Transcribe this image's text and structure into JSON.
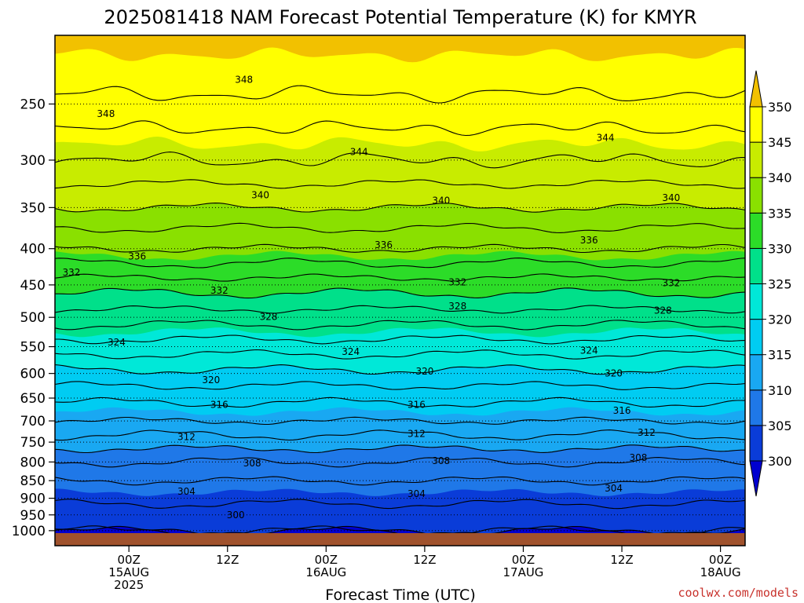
{
  "chart_data": {
    "type": "heatmap",
    "title": "2025081418 NAM Forecast Potential Temperature (K) for KMYR",
    "xlabel": "Forecast Time (UTC)",
    "ylabel": "",
    "credit": "coolwx.com/models",
    "y_scale": "log",
    "y_inverted": true,
    "ylim": [
      200,
      1050
    ],
    "y_ticks": [
      250,
      300,
      350,
      400,
      450,
      500,
      550,
      600,
      650,
      700,
      750,
      800,
      850,
      900,
      950,
      1000
    ],
    "y_tick_labels": [
      "250",
      "300",
      "350",
      "400",
      "450",
      "500",
      "550",
      "600",
      "650",
      "700",
      "750",
      "800",
      "850",
      "900",
      "950",
      "1000"
    ],
    "xlim": [
      -3,
      81
    ],
    "x_ticks": [
      {
        "x": 6,
        "lines": [
          "00Z",
          "15AUG",
          "2025"
        ]
      },
      {
        "x": 18,
        "lines": [
          "12Z"
        ]
      },
      {
        "x": 30,
        "lines": [
          "00Z",
          "16AUG"
        ]
      },
      {
        "x": 42,
        "lines": [
          "12Z"
        ]
      },
      {
        "x": 54,
        "lines": [
          "00Z",
          "17AUG"
        ]
      },
      {
        "x": 66,
        "lines": [
          "12Z"
        ]
      },
      {
        "x": 78,
        "lines": [
          "00Z",
          "18AUG"
        ]
      }
    ],
    "grid": true,
    "surface_color": "#a0522d",
    "colorbar": {
      "levels": [
        300,
        305,
        310,
        315,
        320,
        325,
        330,
        335,
        340,
        345,
        350
      ],
      "labels": [
        "300",
        "305",
        "310",
        "315",
        "320",
        "325",
        "330",
        "335",
        "340",
        "345",
        "350"
      ],
      "colors": [
        "#0000d0",
        "#0a3cd8",
        "#1f78e8",
        "#19a8f2",
        "#00ccf2",
        "#00e8d8",
        "#00e08a",
        "#2cdc28",
        "#8ae000",
        "#c8ec00",
        "#ffff00",
        "#f2c100"
      ],
      "extend": "both"
    },
    "profiles": [
      {
        "p": 1000,
        "theta": 302
      },
      {
        "p": 950,
        "theta": 303
      },
      {
        "p": 900,
        "theta": 304.5
      },
      {
        "p": 850,
        "theta": 306
      },
      {
        "p": 800,
        "theta": 308
      },
      {
        "p": 750,
        "theta": 311
      },
      {
        "p": 700,
        "theta": 314
      },
      {
        "p": 650,
        "theta": 316.5
      },
      {
        "p": 600,
        "theta": 319.5
      },
      {
        "p": 550,
        "theta": 323
      },
      {
        "p": 500,
        "theta": 327
      },
      {
        "p": 450,
        "theta": 331
      },
      {
        "p": 400,
        "theta": 336
      },
      {
        "p": 350,
        "theta": 340
      },
      {
        "p": 300,
        "theta": 344
      },
      {
        "p": 250,
        "theta": 347.5
      },
      {
        "p": 200,
        "theta": 351
      }
    ],
    "contour_levels": [
      300,
      302,
      304,
      306,
      308,
      310,
      312,
      314,
      316,
      318,
      320,
      322,
      324,
      326,
      328,
      330,
      332,
      334,
      336,
      338,
      340,
      342,
      344,
      346,
      348
    ],
    "contour_labels": [
      {
        "value": "348",
        "x": 20,
        "p": 231
      },
      {
        "value": "348",
        "x": 3.2,
        "p": 258
      },
      {
        "value": "344",
        "x": 34,
        "p": 292
      },
      {
        "value": "344",
        "x": 64,
        "p": 279
      },
      {
        "value": "340",
        "x": 22,
        "p": 336
      },
      {
        "value": "340",
        "x": 44,
        "p": 342
      },
      {
        "value": "340",
        "x": 72,
        "p": 339
      },
      {
        "value": "336",
        "x": 7,
        "p": 410
      },
      {
        "value": "336",
        "x": 37,
        "p": 395
      },
      {
        "value": "336",
        "x": 62,
        "p": 389
      },
      {
        "value": "332",
        "x": -1,
        "p": 432
      },
      {
        "value": "332",
        "x": 17,
        "p": 458
      },
      {
        "value": "332",
        "x": 46,
        "p": 446
      },
      {
        "value": "332",
        "x": 72,
        "p": 447
      },
      {
        "value": "328",
        "x": 23,
        "p": 499
      },
      {
        "value": "328",
        "x": 46,
        "p": 482
      },
      {
        "value": "328",
        "x": 71,
        "p": 489
      },
      {
        "value": "324",
        "x": 4.5,
        "p": 542
      },
      {
        "value": "324",
        "x": 33,
        "p": 559
      },
      {
        "value": "324",
        "x": 62,
        "p": 557
      },
      {
        "value": "320",
        "x": 16,
        "p": 613
      },
      {
        "value": "320",
        "x": 42,
        "p": 596
      },
      {
        "value": "320",
        "x": 65,
        "p": 600
      },
      {
        "value": "316",
        "x": 17,
        "p": 664
      },
      {
        "value": "316",
        "x": 41,
        "p": 664
      },
      {
        "value": "316",
        "x": 66,
        "p": 677
      },
      {
        "value": "312",
        "x": 13,
        "p": 737
      },
      {
        "value": "312",
        "x": 41,
        "p": 730
      },
      {
        "value": "312",
        "x": 69,
        "p": 727
      },
      {
        "value": "308",
        "x": 21,
        "p": 803
      },
      {
        "value": "308",
        "x": 44,
        "p": 797
      },
      {
        "value": "308",
        "x": 68,
        "p": 789
      },
      {
        "value": "304",
        "x": 13,
        "p": 880
      },
      {
        "value": "304",
        "x": 41,
        "p": 887
      },
      {
        "value": "304",
        "x": 65,
        "p": 872
      },
      {
        "value": "300",
        "x": 19,
        "p": 950
      }
    ]
  }
}
